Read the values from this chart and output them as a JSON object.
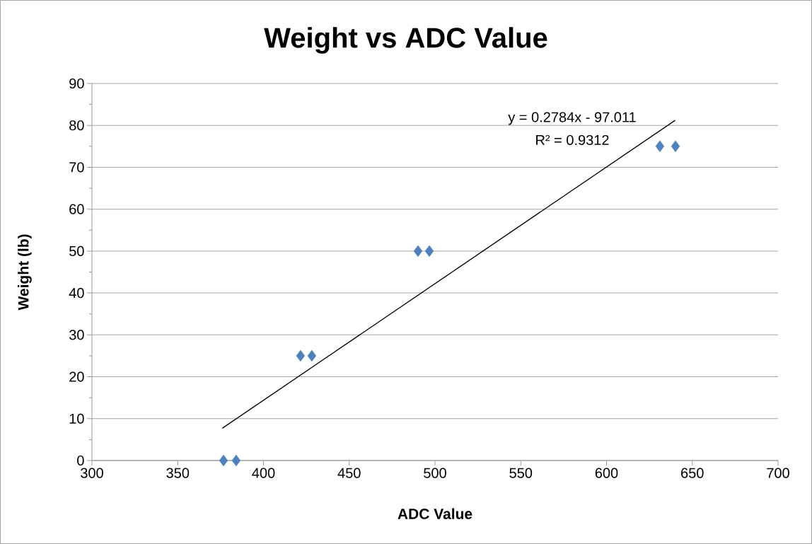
{
  "chart_data": {
    "type": "scatter",
    "title": "Weight vs ADC Value",
    "xlabel": "ADC Value",
    "ylabel": "Weight (lb)",
    "xlim": [
      300,
      700
    ],
    "xticks": [
      300,
      350,
      400,
      450,
      500,
      550,
      600,
      650,
      700
    ],
    "ylim": [
      0,
      90
    ],
    "yticks": [
      0,
      10,
      20,
      30,
      40,
      50,
      60,
      70,
      80,
      90
    ],
    "grid": "y",
    "legend": false,
    "marker": "diamond",
    "series": [
      {
        "color": "#4f81bd",
        "x": [
          376.7,
          384.1,
          421.6,
          428.2,
          490.1,
          496.7,
          631.1,
          640.2
        ],
        "values": [
          0,
          0,
          25,
          25,
          50,
          50,
          75,
          75
        ]
      },
      {
        "type": "line",
        "color": "#000000",
        "marker": "none",
        "x": [
          376,
          640
        ],
        "values": [
          7.7,
          81.2
        ]
      }
    ],
    "annotations": [
      "y = 0.2784x - 97.011",
      "R² = 0.9312"
    ]
  }
}
